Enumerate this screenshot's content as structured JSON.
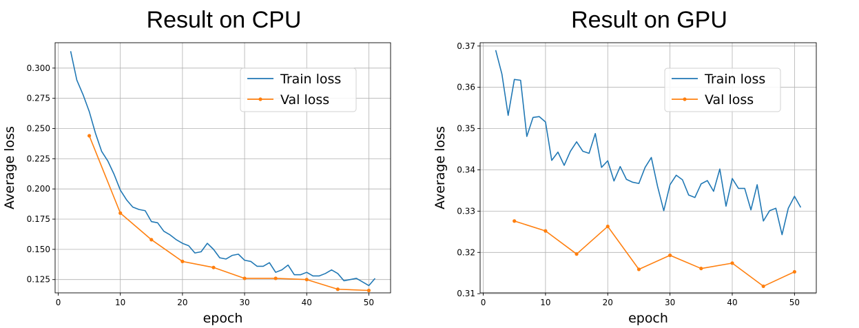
{
  "chart_data": [
    {
      "type": "line",
      "title": "Result on CPU",
      "xlabel": "epoch",
      "ylabel": "Average loss",
      "xlim": [
        -0.5,
        53.5
      ],
      "ylim": [
        0.114,
        0.321
      ],
      "xticks": [
        0,
        10,
        20,
        30,
        40,
        50
      ],
      "yticks": [
        0.125,
        0.15,
        0.175,
        0.2,
        0.225,
        0.25,
        0.275,
        0.3
      ],
      "ytick_labels": [
        "0.125",
        "0.150",
        "0.175",
        "0.200",
        "0.225",
        "0.250",
        "0.275",
        "0.300"
      ],
      "grid": true,
      "legend_position": "top-right",
      "series": [
        {
          "name": "Train loss",
          "color": "#1f77b4",
          "marker": "none",
          "x": [
            2,
            3,
            4,
            5,
            6,
            7,
            8,
            9,
            10,
            11,
            12,
            13,
            14,
            15,
            16,
            17,
            18,
            19,
            20,
            21,
            22,
            23,
            24,
            25,
            26,
            27,
            28,
            29,
            30,
            31,
            32,
            33,
            34,
            35,
            36,
            37,
            38,
            39,
            40,
            41,
            42,
            43,
            44,
            45,
            46,
            47,
            48,
            49,
            50,
            51
          ],
          "y": [
            0.314,
            0.29,
            0.278,
            0.264,
            0.246,
            0.231,
            0.223,
            0.212,
            0.199,
            0.191,
            0.185,
            0.183,
            0.182,
            0.173,
            0.172,
            0.165,
            0.162,
            0.158,
            0.155,
            0.153,
            0.147,
            0.148,
            0.155,
            0.15,
            0.143,
            0.142,
            0.145,
            0.146,
            0.141,
            0.14,
            0.136,
            0.136,
            0.139,
            0.131,
            0.133,
            0.137,
            0.129,
            0.129,
            0.131,
            0.128,
            0.128,
            0.13,
            0.133,
            0.13,
            0.124,
            0.125,
            0.126,
            0.123,
            0.12,
            0.126
          ]
        },
        {
          "name": "Val loss",
          "color": "#ff7f0e",
          "marker": "o",
          "x": [
            5,
            10,
            15,
            20,
            25,
            30,
            35,
            40,
            45,
            50
          ],
          "y": [
            0.244,
            0.18,
            0.158,
            0.14,
            0.135,
            0.126,
            0.126,
            0.125,
            0.117,
            0.116
          ]
        }
      ]
    },
    {
      "type": "line",
      "title": "Result on GPU",
      "xlabel": "epoch",
      "ylabel": "Average loss",
      "xlim": [
        -0.5,
        53.5
      ],
      "ylim": [
        0.3102,
        0.3708
      ],
      "xticks": [
        0,
        10,
        20,
        30,
        40,
        50
      ],
      "yticks": [
        0.31,
        0.32,
        0.33,
        0.34,
        0.35,
        0.36,
        0.37
      ],
      "ytick_labels": [
        "0.31",
        "0.32",
        "0.33",
        "0.34",
        "0.35",
        "0.36",
        "0.37"
      ],
      "grid": true,
      "legend_position": "top-right",
      "series": [
        {
          "name": "Train loss",
          "color": "#1f77b4",
          "marker": "none",
          "x": [
            2,
            3,
            4,
            5,
            6,
            7,
            8,
            9,
            10,
            11,
            12,
            13,
            14,
            15,
            16,
            17,
            18,
            19,
            20,
            21,
            22,
            23,
            24,
            25,
            26,
            27,
            28,
            29,
            30,
            31,
            32,
            33,
            34,
            35,
            36,
            37,
            38,
            39,
            40,
            41,
            42,
            43,
            44,
            45,
            46,
            47,
            48,
            49,
            50,
            51
          ],
          "y": [
            0.369,
            0.3632,
            0.3532,
            0.3619,
            0.3617,
            0.3481,
            0.3527,
            0.3529,
            0.3516,
            0.3423,
            0.3443,
            0.3411,
            0.3445,
            0.3468,
            0.3445,
            0.344,
            0.3488,
            0.3406,
            0.3422,
            0.3373,
            0.3408,
            0.3377,
            0.337,
            0.3367,
            0.3406,
            0.343,
            0.336,
            0.3301,
            0.3364,
            0.3387,
            0.3376,
            0.3339,
            0.3333,
            0.3366,
            0.3374,
            0.3348,
            0.3402,
            0.3312,
            0.3379,
            0.3355,
            0.3355,
            0.3303,
            0.3364,
            0.3276,
            0.3301,
            0.3307,
            0.3243,
            0.3307,
            0.3336,
            0.3309
          ]
        },
        {
          "name": "Val loss",
          "color": "#ff7f0e",
          "marker": "o",
          "x": [
            5,
            10,
            15,
            20,
            25,
            30,
            35,
            40,
            45,
            50
          ],
          "y": [
            0.3276,
            0.3252,
            0.3196,
            0.3263,
            0.3159,
            0.3193,
            0.3161,
            0.3174,
            0.3118,
            0.3153
          ]
        }
      ]
    }
  ]
}
